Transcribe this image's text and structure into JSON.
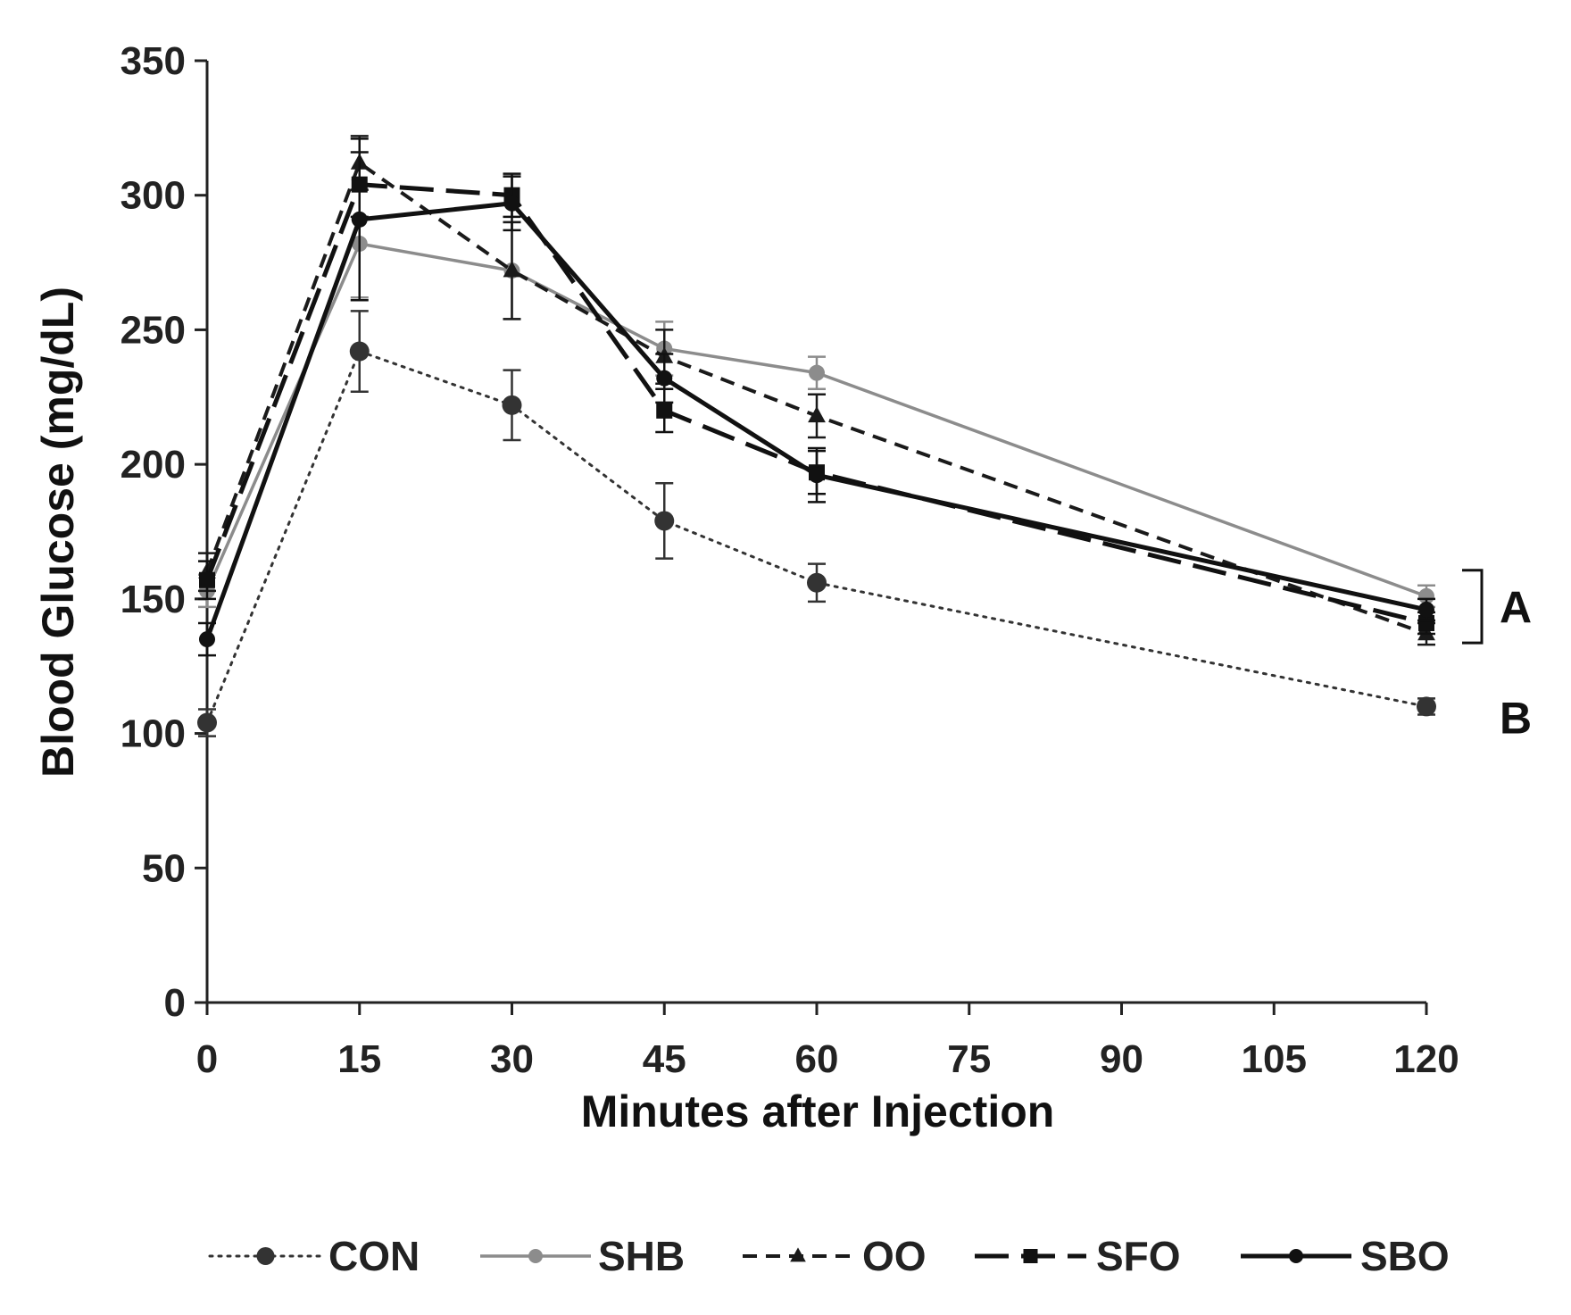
{
  "chart_data": {
    "type": "line",
    "title": "",
    "xlabel": "Minutes after Injection",
    "ylabel": "Blood Glucose (mg/dL)",
    "xlim": [
      0,
      120
    ],
    "ylim": [
      0,
      350
    ],
    "x_ticks": [
      0,
      15,
      30,
      45,
      60,
      75,
      90,
      105,
      120
    ],
    "y_ticks": [
      0,
      50,
      100,
      150,
      200,
      250,
      300,
      350
    ],
    "grid": false,
    "legend_position": "bottom",
    "x": [
      0,
      15,
      30,
      45,
      60,
      120
    ],
    "series": [
      {
        "name": "CON",
        "style": "dotted",
        "color": "#333333",
        "marker": "circle",
        "values": [
          104,
          242,
          222,
          179,
          156,
          110
        ],
        "errors": [
          5,
          15,
          13,
          14,
          7,
          3
        ]
      },
      {
        "name": "SHB",
        "style": "solid",
        "color": "#8c8c8c",
        "marker": "circle",
        "values": [
          153,
          282,
          272,
          243,
          234,
          151
        ],
        "errors": [
          6,
          20,
          18,
          10,
          6,
          4
        ]
      },
      {
        "name": "OO",
        "style": "dashed",
        "color": "#1a1a1a",
        "marker": "triangle",
        "values": [
          160,
          312,
          272,
          240,
          218,
          137
        ],
        "errors": [
          7,
          10,
          18,
          10,
          8,
          4
        ]
      },
      {
        "name": "SFO",
        "style": "longdash",
        "color": "#111111",
        "marker": "square",
        "values": [
          157,
          304,
          300,
          220,
          197,
          141
        ],
        "errors": [
          7,
          12,
          8,
          8,
          8,
          4
        ]
      },
      {
        "name": "SBO",
        "style": "solid-thick",
        "color": "#111111",
        "marker": "circle",
        "values": [
          135,
          291,
          297,
          232,
          196,
          146
        ],
        "errors": [
          6,
          30,
          10,
          9,
          10,
          4
        ]
      }
    ],
    "annotations": [
      {
        "label": "A",
        "range": [
          135,
          160
        ]
      },
      {
        "label": "B",
        "value": 110
      }
    ]
  }
}
